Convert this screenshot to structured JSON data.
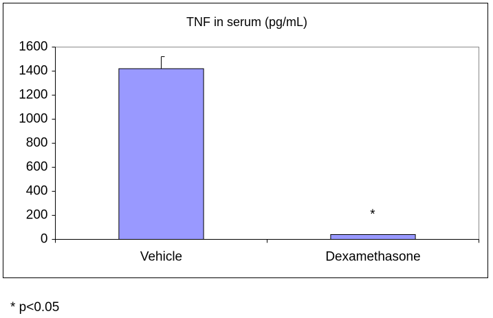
{
  "chart_data": {
    "type": "bar",
    "title": "TNF in serum (pg/mL)",
    "categories": [
      "Vehicle",
      "Dexamethasone"
    ],
    "series": [
      {
        "name": "TNF",
        "color": "#9999ff",
        "values": [
          1420,
          40
        ],
        "errors": [
          100,
          null
        ]
      }
    ],
    "ylim": [
      0,
      1600
    ],
    "yticks": [
      0,
      200,
      400,
      600,
      800,
      1000,
      1200,
      1400,
      1600
    ],
    "annotation": "*",
    "footnote": "* p<0.05"
  }
}
